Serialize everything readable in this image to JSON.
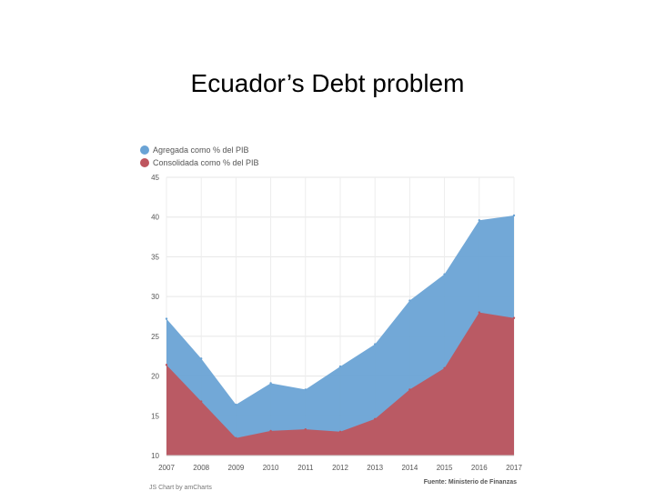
{
  "slide": {
    "title": "Ecuador’s Debt problem"
  },
  "chart_data": {
    "type": "area",
    "x": [
      2007,
      2008,
      2009,
      2010,
      2011,
      2012,
      2013,
      2014,
      2015,
      2016,
      2017
    ],
    "x_labels": [
      "2007",
      "2008",
      "2009",
      "2010",
      "2011",
      "2012",
      "2013",
      "2014",
      "2015",
      "2016",
      "2017"
    ],
    "series": [
      {
        "name": "Agregada como % del PIB",
        "color": "#6aa3d5",
        "values": [
          27.2,
          22.2,
          16.4,
          19.1,
          18.3,
          21.2,
          24.0,
          29.5,
          32.8,
          39.6,
          40.2
        ]
      },
      {
        "name": "Consolidada como % del PIB",
        "color": "#be555e",
        "values": [
          21.4,
          16.8,
          12.2,
          13.1,
          13.3,
          13.0,
          14.6,
          18.3,
          21.0,
          28.0,
          27.3
        ]
      }
    ],
    "ylim": [
      10,
      45
    ],
    "y_ticks": [
      10,
      15,
      20,
      25,
      30,
      35,
      40,
      45
    ],
    "grid": true,
    "legend_position": "top-left",
    "source": "Fuente: Ministerio de Finanzas",
    "credit": "JS Chart by amCharts"
  }
}
